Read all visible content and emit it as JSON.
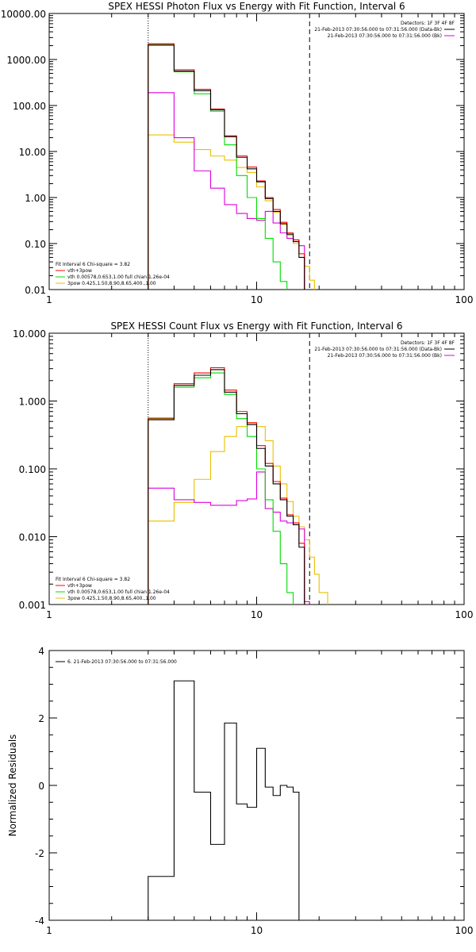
{
  "chart_data": [
    {
      "type": "line",
      "title": "SPEX HESSI Photon Flux vs Energy with Fit Function, Interval 6",
      "xlabel": "",
      "ylabel": "",
      "xscale": "log",
      "yscale": "log",
      "xlim": [
        1,
        100
      ],
      "ylim": [
        0.01,
        10000
      ],
      "x_ticks": [
        "1",
        "10",
        "100"
      ],
      "y_ticks": [
        "10000.00",
        "1000.00",
        "100.00",
        "10.00",
        "1.00",
        "0.10",
        "0.01"
      ],
      "x_edges": [
        3,
        4,
        5,
        6,
        7,
        8,
        9,
        10,
        11,
        12,
        13,
        14,
        15,
        16,
        17,
        18,
        19,
        20,
        22,
        25
      ],
      "series": [
        {
          "name": "21-Feb-2013 07:30:56.000 to 07:31:56.000 (Data-Bk)",
          "color": "#000000",
          "values": [
            2050,
            560,
            210,
            80,
            21,
            7.5,
            4.2,
            2.2,
            0.95,
            0.5,
            0.27,
            0.16,
            0.11,
            0.05
          ]
        },
        {
          "name": "vth+3pow",
          "color": "#ff0000",
          "values": [
            2200,
            600,
            225,
            84,
            22,
            8.0,
            4.6,
            2.3,
            1.0,
            0.55,
            0.29,
            0.17,
            0.12,
            0.06
          ]
        },
        {
          "name": "vth 0.00578,0.653,1.00  full chian 1.26e-04",
          "color": "#00dd00",
          "values": [
            2150,
            540,
            180,
            75,
            14,
            3.0,
            1.0,
            0.35,
            0.13,
            0.04,
            0.015,
            0.008
          ]
        },
        {
          "name": "3pow 0.425,1.50,8.90,8.65,400.,1.00",
          "color": "#e8c000",
          "values": [
            23,
            16,
            11,
            8.0,
            6.5,
            4.5,
            3.5,
            1.7,
            0.85,
            0.48,
            0.26,
            0.15,
            0.1,
            0.06,
            0.032,
            0.016,
            0.009
          ]
        },
        {
          "name": "21-Feb-2013 07:30:56.000 to 07:31:56.000 (Bk)",
          "color": "#dd00dd",
          "values": [
            190,
            20,
            3.8,
            1.6,
            0.7,
            0.45,
            0.35,
            0.32,
            0.5,
            0.28,
            0.17,
            0.13,
            0.12,
            0.09,
            0.008
          ]
        }
      ],
      "vlines": [
        {
          "x": 3,
          "style": "dotted"
        },
        {
          "x": 18,
          "style": "dashed"
        }
      ],
      "legend_top": {
        "detectors": "Detectors: 1F 3F 4F 8F",
        "entries": [
          "21-Feb-2013 07:30:56.000 to 07:31:56.000 (Data-Bk)",
          "21-Feb-2013 07:30:56.000 to 07:31:56.000 (Bk)"
        ]
      },
      "legend_bottom": {
        "header": "Fit Interval 6   Chi-square = 3.82",
        "entries": [
          "vth+3pow",
          "vth 0.00578,0.653,1.00  full chian 1.26e-04",
          "3pow 0.425,1.50,8.90,8.65,400.,1.00"
        ]
      }
    },
    {
      "type": "line",
      "title": "SPEX HESSI Count Flux vs Energy with Fit Function, Interval 6",
      "xlabel": "",
      "ylabel": "",
      "xscale": "log",
      "yscale": "log",
      "xlim": [
        1,
        100
      ],
      "ylim": [
        0.001,
        10
      ],
      "x_ticks": [
        "1",
        "10",
        "100"
      ],
      "y_ticks": [
        "10.000",
        "1.000",
        "0.100",
        "0.010",
        "0.001"
      ],
      "x_edges": [
        3,
        4,
        5,
        6,
        7,
        8,
        9,
        10,
        11,
        12,
        13,
        14,
        15,
        16,
        17,
        18,
        19,
        20,
        22,
        25
      ],
      "series": [
        {
          "name": "21-Feb-2013 07:30:56.000 to 07:31:56.000 (Data-Bk)",
          "color": "#000000",
          "values": [
            0.53,
            1.7,
            2.4,
            2.9,
            1.35,
            0.65,
            0.45,
            0.2,
            0.11,
            0.06,
            0.035,
            0.02,
            0.015,
            0.007
          ]
        },
        {
          "name": "vth+3pow",
          "color": "#ff0000",
          "values": [
            0.56,
            1.8,
            2.6,
            3.1,
            1.45,
            0.7,
            0.48,
            0.22,
            0.12,
            0.065,
            0.037,
            0.021,
            0.016,
            0.008
          ]
        },
        {
          "name": "vth 0.00578,0.653,1.00  full chian 1.26e-04",
          "color": "#00dd00",
          "values": [
            0.55,
            1.6,
            2.2,
            2.6,
            1.25,
            0.55,
            0.3,
            0.1,
            0.035,
            0.012,
            0.004,
            0.0015
          ]
        },
        {
          "name": "3pow 0.425,1.50,8.90,8.65,400.,1.00",
          "color": "#e8c000",
          "values": [
            0.017,
            0.032,
            0.07,
            0.18,
            0.3,
            0.42,
            0.47,
            0.42,
            0.26,
            0.11,
            0.06,
            0.033,
            0.02,
            0.014,
            0.009,
            0.005,
            0.0028,
            0.0015
          ]
        },
        {
          "name": "21-Feb-2013 07:30:56.000 to 07:31:56.000 (Bk)",
          "color": "#dd00dd",
          "values": [
            0.052,
            0.035,
            0.032,
            0.029,
            0.029,
            0.034,
            0.036,
            0.09,
            0.026,
            0.023,
            0.017,
            0.016,
            0.015,
            0.013,
            0.0011
          ]
        }
      ],
      "vlines": [
        {
          "x": 3,
          "style": "dotted"
        },
        {
          "x": 18,
          "style": "dashed"
        }
      ],
      "legend_top": {
        "detectors": "Detectors: 1F 3F 4F 8F",
        "entries": [
          "21-Feb-2013 07:30:56.000 to 07:31:56.000 (Data-Bk)",
          "21-Feb-2013 07:30:56.000 to 07:31:56.000 (Bk)"
        ]
      },
      "legend_bottom": {
        "header": "Fit Interval 6   Chi-square = 3.82",
        "entries": [
          "vth+3pow",
          "vth 0.00578,0.653,1.00  full chian 1.26e-04",
          "3pow 0.425,1.50,8.90,8.65,400.,1.00"
        ]
      }
    },
    {
      "type": "line",
      "title": "",
      "xlabel": "",
      "ylabel": "Normalized Residuals",
      "xscale": "log",
      "yscale": "linear",
      "xlim": [
        1,
        100
      ],
      "ylim": [
        -4,
        4
      ],
      "x_ticks": [
        "1",
        "10",
        "100"
      ],
      "y_ticks": [
        "4",
        "2",
        "0",
        "-2",
        "-4"
      ],
      "x_edges": [
        3,
        4,
        5,
        6,
        7,
        8,
        9,
        10,
        11,
        12,
        13,
        14,
        15,
        16,
        17,
        18
      ],
      "series": [
        {
          "name": "6. 21-Feb-2013 07:30:56.000 to 07:31:56.000",
          "color": "#000000",
          "values": [
            -2.7,
            3.1,
            -0.2,
            -1.75,
            1.85,
            -0.55,
            -0.65,
            1.1,
            -0.05,
            -0.3,
            0.0,
            -0.05,
            -0.2
          ]
        }
      ]
    }
  ]
}
